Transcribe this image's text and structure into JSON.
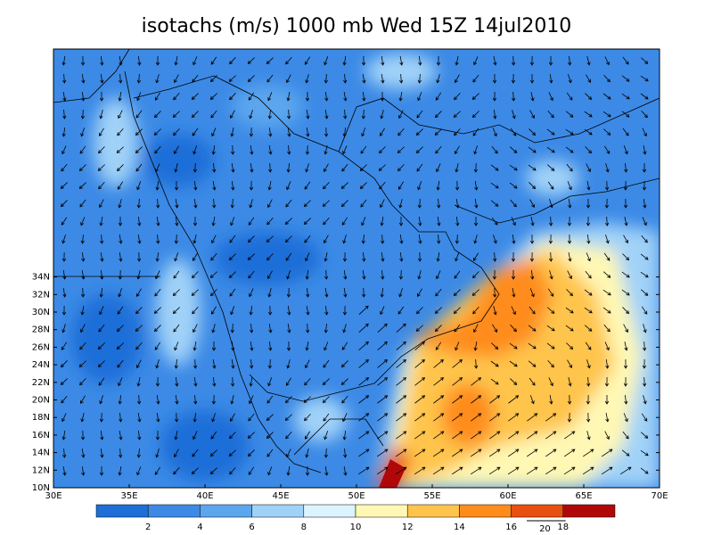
{
  "title": "isotachs (m/s) 1000 mb Wed 15Z 14jul2010",
  "map": {
    "lat_labels": [
      "34N",
      "32N",
      "30N",
      "28N",
      "26N",
      "24N",
      "22N",
      "20N",
      "18N",
      "16N",
      "14N",
      "12N",
      "10N"
    ],
    "lon_labels": [
      "30E",
      "35E",
      "40E",
      "45E",
      "50E",
      "55E",
      "60E",
      "65E",
      "70E"
    ]
  },
  "colorbar": {
    "labels": [
      2,
      4,
      6,
      8,
      10,
      12,
      14,
      16,
      18
    ],
    "extra_label": 20,
    "colors": [
      "#1e6ed8",
      "#3c8ae6",
      "#5ca6ee",
      "#a0d2f8",
      "#dcf4fe",
      "#fff8b4",
      "#ffc44c",
      "#ff8c1a",
      "#e85010",
      "#b00808"
    ]
  }
}
